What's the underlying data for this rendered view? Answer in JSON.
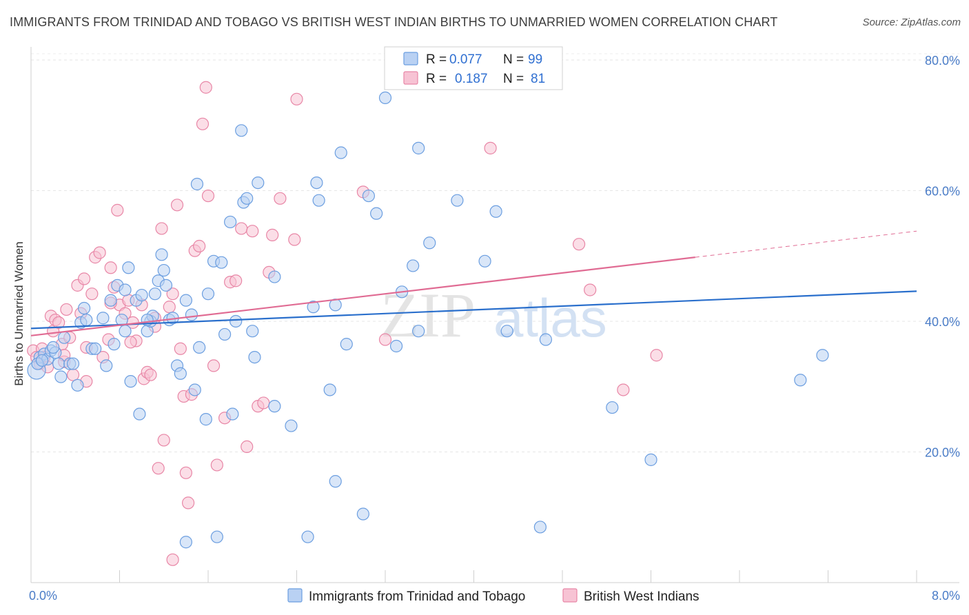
{
  "title": "IMMIGRANTS FROM TRINIDAD AND TOBAGO VS BRITISH WEST INDIAN BIRTHS TO UNMARRIED WOMEN CORRELATION CHART",
  "source": "Source: ZipAtlas.com",
  "watermark": {
    "zip": "ZIP",
    "atlas": "atlas"
  },
  "legend": {
    "series1": {
      "r_label": "R =",
      "r_value": "0.077",
      "n_label": "N =",
      "n_value": "99"
    },
    "series2": {
      "r_label": "R =",
      "r_value": "0.187",
      "n_label": "N =",
      "n_value": "81"
    }
  },
  "chart_data": {
    "type": "scatter",
    "title": "IMMIGRANTS FROM TRINIDAD AND TOBAGO VS BRITISH WEST INDIAN BIRTHS TO UNMARRIED WOMEN CORRELATION CHART",
    "xlabel": "",
    "ylabel": "Births to Unmarried Women",
    "xlim": [
      0,
      8
    ],
    "ylim": [
      0,
      82
    ],
    "x_tick_labels": [
      "0.0%",
      "8.0%"
    ],
    "y_ticks": [
      20,
      40,
      60,
      80
    ],
    "y_tick_labels": [
      "20.0%",
      "40.0%",
      "60.0%",
      "80.0%"
    ],
    "grid": true,
    "legend_position": "top-center",
    "colors": {
      "blue": "#6b9ee0",
      "blue_fill": "#b9d1f3",
      "blue_line": "#2a6fcc",
      "pink": "#e886a6",
      "pink_fill": "#f7c3d4",
      "pink_line": "#e06b93"
    },
    "series": [
      {
        "name": "Immigrants from Trinidad and Tobago",
        "color": "#6b9ee0",
        "trend": {
          "x": [
            0,
            8
          ],
          "y": [
            38.9,
            44.6
          ]
        },
        "points": [
          [
            0.05,
            32.5
          ],
          [
            0.08,
            34.5
          ],
          [
            0.12,
            35.0
          ],
          [
            0.15,
            34.2
          ],
          [
            0.18,
            35.5
          ],
          [
            0.22,
            35.2
          ],
          [
            0.25,
            33.5
          ],
          [
            0.27,
            31.5
          ],
          [
            0.3,
            37.5
          ],
          [
            0.35,
            33.5
          ],
          [
            0.38,
            33.5
          ],
          [
            0.42,
            30.2
          ],
          [
            0.45,
            39.8
          ],
          [
            0.48,
            42.0
          ],
          [
            0.5,
            40.2
          ],
          [
            0.55,
            35.8
          ],
          [
            0.58,
            35.8
          ],
          [
            0.65,
            40.5
          ],
          [
            0.68,
            33.2
          ],
          [
            0.72,
            43.2
          ],
          [
            0.75,
            36.5
          ],
          [
            0.78,
            45.5
          ],
          [
            0.82,
            40.2
          ],
          [
            0.85,
            44.8
          ],
          [
            0.88,
            48.2
          ],
          [
            0.9,
            30.8
          ],
          [
            0.95,
            43.2
          ],
          [
            0.98,
            25.8
          ],
          [
            1.0,
            44.0
          ],
          [
            1.05,
            38.5
          ],
          [
            1.08,
            40.0
          ],
          [
            1.1,
            40.8
          ],
          [
            1.12,
            44.2
          ],
          [
            1.15,
            46.2
          ],
          [
            1.18,
            50.2
          ],
          [
            1.2,
            47.8
          ],
          [
            1.22,
            45.5
          ],
          [
            1.25,
            40.2
          ],
          [
            1.28,
            40.5
          ],
          [
            1.32,
            33.2
          ],
          [
            1.35,
            32.0
          ],
          [
            1.4,
            43.2
          ],
          [
            1.45,
            41.0
          ],
          [
            1.48,
            29.5
          ],
          [
            1.5,
            61.0
          ],
          [
            1.52,
            36.0
          ],
          [
            1.58,
            25.0
          ],
          [
            1.6,
            44.2
          ],
          [
            1.65,
            49.2
          ],
          [
            1.68,
            7.0
          ],
          [
            1.72,
            49.0
          ],
          [
            1.75,
            38.0
          ],
          [
            1.8,
            55.2
          ],
          [
            1.82,
            25.8
          ],
          [
            1.85,
            40.0
          ],
          [
            1.9,
            69.2
          ],
          [
            1.92,
            58.2
          ],
          [
            1.95,
            58.8
          ],
          [
            2.0,
            38.5
          ],
          [
            2.02,
            34.5
          ],
          [
            2.05,
            61.2
          ],
          [
            2.2,
            46.8
          ],
          [
            2.2,
            27.0
          ],
          [
            2.35,
            24.0
          ],
          [
            2.5,
            7.0
          ],
          [
            2.55,
            42.2
          ],
          [
            2.58,
            61.2
          ],
          [
            2.6,
            58.5
          ],
          [
            2.7,
            29.5
          ],
          [
            2.75,
            42.5
          ],
          [
            2.8,
            65.8
          ],
          [
            2.85,
            36.5
          ],
          [
            2.75,
            15.5
          ],
          [
            3.0,
            10.5
          ],
          [
            3.05,
            59.2
          ],
          [
            3.12,
            56.5
          ],
          [
            3.2,
            74.2
          ],
          [
            3.3,
            36.2
          ],
          [
            3.35,
            44.5
          ],
          [
            3.45,
            48.5
          ],
          [
            3.5,
            38.5
          ],
          [
            3.5,
            66.5
          ],
          [
            3.6,
            52.0
          ],
          [
            3.85,
            58.5
          ],
          [
            4.1,
            49.2
          ],
          [
            4.2,
            56.8
          ],
          [
            4.3,
            38.5
          ],
          [
            4.6,
            8.5
          ],
          [
            4.65,
            37.2
          ],
          [
            5.25,
            26.8
          ],
          [
            5.6,
            18.8
          ],
          [
            6.95,
            31.0
          ],
          [
            7.15,
            34.8
          ],
          [
            0.06,
            33.5
          ],
          [
            0.1,
            34.0
          ],
          [
            1.05,
            40.2
          ],
          [
            0.85,
            38.5
          ],
          [
            0.2,
            36.0
          ],
          [
            1.4,
            6.2
          ]
        ]
      },
      {
        "name": "British West Indians",
        "color": "#e886a6",
        "trend": {
          "x": [
            0,
            6.0
          ],
          "y": [
            37.8,
            49.8
          ]
        },
        "trend_dashed": {
          "x": [
            6.0,
            8.0
          ],
          "y": [
            49.8,
            53.8
          ]
        },
        "points": [
          [
            0.02,
            35.5
          ],
          [
            0.05,
            34.5
          ],
          [
            0.08,
            33.5
          ],
          [
            0.1,
            35.8
          ],
          [
            0.12,
            34.5
          ],
          [
            0.15,
            33.0
          ],
          [
            0.18,
            40.8
          ],
          [
            0.2,
            38.5
          ],
          [
            0.22,
            40.2
          ],
          [
            0.25,
            39.8
          ],
          [
            0.28,
            36.5
          ],
          [
            0.3,
            33.8
          ],
          [
            0.32,
            41.8
          ],
          [
            0.35,
            37.5
          ],
          [
            0.38,
            31.8
          ],
          [
            0.42,
            45.5
          ],
          [
            0.45,
            41.2
          ],
          [
            0.48,
            46.5
          ],
          [
            0.5,
            30.8
          ],
          [
            0.55,
            44.2
          ],
          [
            0.58,
            49.8
          ],
          [
            0.62,
            50.5
          ],
          [
            0.65,
            34.5
          ],
          [
            0.7,
            37.2
          ],
          [
            0.72,
            48.2
          ],
          [
            0.75,
            45.2
          ],
          [
            0.78,
            57.0
          ],
          [
            0.8,
            42.5
          ],
          [
            0.85,
            41.2
          ],
          [
            0.88,
            43.2
          ],
          [
            0.92,
            39.8
          ],
          [
            0.95,
            37.0
          ],
          [
            1.0,
            42.5
          ],
          [
            1.02,
            31.2
          ],
          [
            1.05,
            32.2
          ],
          [
            1.08,
            31.8
          ],
          [
            1.12,
            39.2
          ],
          [
            1.15,
            17.5
          ],
          [
            1.18,
            54.2
          ],
          [
            1.2,
            21.8
          ],
          [
            1.25,
            42.2
          ],
          [
            1.28,
            44.2
          ],
          [
            1.32,
            57.8
          ],
          [
            1.35,
            35.8
          ],
          [
            1.38,
            28.5
          ],
          [
            1.4,
            16.8
          ],
          [
            1.42,
            12.2
          ],
          [
            1.45,
            28.8
          ],
          [
            1.48,
            50.8
          ],
          [
            1.52,
            51.5
          ],
          [
            1.55,
            70.2
          ],
          [
            1.58,
            75.8
          ],
          [
            1.6,
            59.2
          ],
          [
            1.65,
            33.2
          ],
          [
            1.68,
            18.0
          ],
          [
            1.75,
            25.2
          ],
          [
            1.8,
            46.0
          ],
          [
            1.85,
            46.2
          ],
          [
            1.9,
            54.2
          ],
          [
            1.95,
            20.8
          ],
          [
            2.0,
            53.8
          ],
          [
            2.05,
            27.0
          ],
          [
            2.1,
            27.5
          ],
          [
            2.15,
            47.5
          ],
          [
            2.18,
            53.2
          ],
          [
            2.25,
            58.8
          ],
          [
            2.38,
            52.5
          ],
          [
            2.4,
            74.0
          ],
          [
            3.0,
            59.8
          ],
          [
            3.2,
            37.2
          ],
          [
            4.15,
            66.5
          ],
          [
            4.95,
            51.8
          ],
          [
            5.05,
            44.8
          ],
          [
            5.35,
            29.5
          ],
          [
            5.65,
            34.8
          ],
          [
            1.28,
            3.5
          ],
          [
            0.5,
            36.0
          ],
          [
            0.72,
            42.8
          ],
          [
            0.9,
            36.8
          ],
          [
            1.12,
            40.5
          ],
          [
            0.3,
            34.8
          ]
        ]
      }
    ]
  },
  "bottom_legend": {
    "series1_label": "Immigrants from Trinidad and Tobago",
    "series2_label": "British West Indians"
  }
}
